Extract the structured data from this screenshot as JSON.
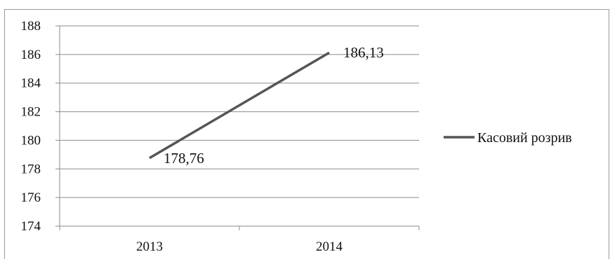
{
  "chart_data": {
    "type": "line",
    "categories": [
      "2013",
      "2014"
    ],
    "series": [
      {
        "name": "Касовий розрив",
        "values": [
          178.76,
          186.13
        ],
        "labels": [
          "178,76",
          "186,13"
        ],
        "color": "#555555"
      }
    ],
    "y_ticks": [
      "174",
      "176",
      "178",
      "180",
      "182",
      "184",
      "186",
      "188"
    ],
    "ylim": [
      174,
      188
    ],
    "grid": true,
    "legend_position": "right",
    "title": "",
    "xlabel": "",
    "ylabel": ""
  }
}
